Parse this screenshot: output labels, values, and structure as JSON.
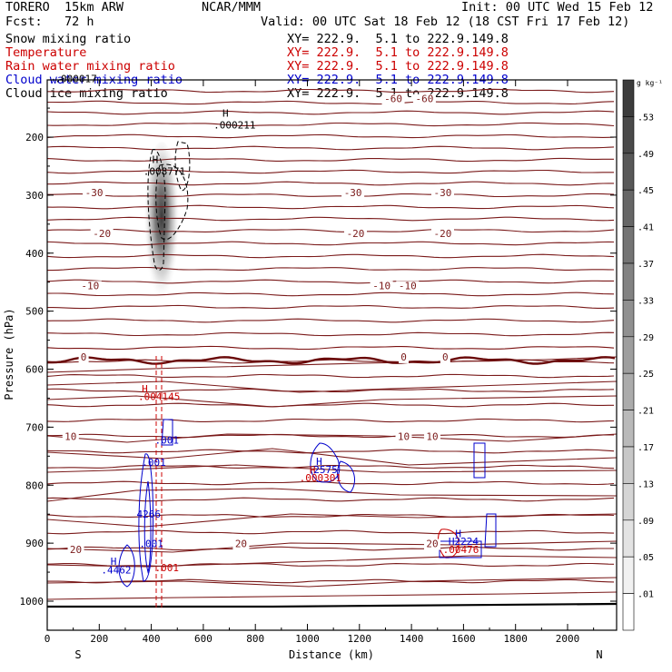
{
  "header": {
    "model": "TORERO  15km ARW",
    "center": "NCAR/MMM",
    "init": "Init: 00 UTC Wed 15 Feb 12",
    "fcst": "Fcst:   72 h",
    "valid": "Valid: 00 UTC Sat 18 Feb 12 (18 CST Fri 17 Feb 12)",
    "fields": [
      {
        "name": "Snow mixing ratio",
        "xy": "XY= 222.9.  5.1 to 222.9.149.8",
        "color": "#000000"
      },
      {
        "name": "Temperature",
        "xy": "XY= 222.9.  5.1 to 222.9.149.8",
        "color": "#cc0000"
      },
      {
        "name": "Rain water mixing ratio",
        "xy": "XY= 222.9.  5.1 to 222.9.149.8",
        "color": "#cc0000"
      },
      {
        "name": "Cloud water mixing ratio",
        "xy": "XY= 222.9.  5.1 to 222.9.149.8",
        "color": "#0000cc"
      },
      {
        "name": "Cloud ice mixing ratio",
        "xy": "XY= 222.9.  5.1 to 222.9.149.8",
        "color": "#000000"
      }
    ]
  },
  "chart_data": {
    "type": "cross-section",
    "xlabel": "Distance (km)",
    "ylabel": "Pressure (hPa)",
    "xlim": [
      0,
      2200
    ],
    "ylim": [
      1050,
      100
    ],
    "x_ticks": [
      "0",
      "200",
      "400",
      "600",
      "800",
      "1000",
      "1200",
      "1400",
      "1600",
      "1800",
      "2000"
    ],
    "y_ticks": [
      "200",
      "300",
      "400",
      "500",
      "600",
      "700",
      "800",
      "900",
      "1000"
    ],
    "left_end": "S",
    "right_end": "N",
    "colorbar": {
      "unit": "g kg⁻¹",
      "labels": [
        ".53",
        ".49",
        ".45",
        ".41",
        ".37",
        ".33",
        ".29",
        ".25",
        ".21",
        ".17",
        ".13",
        ".09",
        ".05",
        ".01"
      ]
    },
    "snow_max": {
      "label": "H",
      "value": ".008771",
      "x": 450,
      "p": 265
    },
    "cloud_ice_max": {
      "label": "H",
      "value": ".000211",
      "x": 720,
      "p": 185
    },
    "cloud_ice_corner": {
      "value": ".000017",
      "x": 110,
      "p": 105
    },
    "temperature_labels": [
      {
        "text": "-60",
        "x": 1330,
        "p": 140
      },
      {
        "text": "-60",
        "x": 1450,
        "p": 140
      },
      {
        "text": "-30",
        "x": 180,
        "p": 302
      },
      {
        "text": "-30",
        "x": 1175,
        "p": 302
      },
      {
        "text": "-30",
        "x": 1520,
        "p": 302
      },
      {
        "text": "-20",
        "x": 210,
        "p": 372
      },
      {
        "text": "-20",
        "x": 1185,
        "p": 372
      },
      {
        "text": "-20",
        "x": 1520,
        "p": 372
      },
      {
        "text": "-10",
        "x": 165,
        "p": 462
      },
      {
        "text": "-10",
        "x": 1285,
        "p": 462
      },
      {
        "text": "-10",
        "x": 1385,
        "p": 462
      },
      {
        "text": "0",
        "x": 140,
        "p": 585
      },
      {
        "text": "0",
        "x": 1370,
        "p": 585
      },
      {
        "text": "0",
        "x": 1530,
        "p": 585
      },
      {
        "text": "10",
        "x": 90,
        "p": 722
      },
      {
        "text": "10",
        "x": 1370,
        "p": 722
      },
      {
        "text": "10",
        "x": 1480,
        "p": 722
      },
      {
        "text": "20",
        "x": 110,
        "p": 917
      },
      {
        "text": "20",
        "x": 745,
        "p": 907
      },
      {
        "text": "20",
        "x": 1480,
        "p": 907
      }
    ],
    "rain_labels": [
      {
        "text": "H",
        "x": 375,
        "p": 640
      },
      {
        "text": ".004145",
        "x": 430,
        "p": 653
      },
      {
        "text": "H",
        "x": 1020,
        "p": 780
      },
      {
        "text": ".000301",
        "x": 1050,
        "p": 793
      },
      {
        "text": ".00476",
        "x": 1590,
        "p": 917
      },
      {
        "text": ".001",
        "x": 460,
        "p": 948
      }
    ],
    "cloud_water_labels": [
      {
        "text": ".001",
        "x": 460,
        "p": 728
      },
      {
        "text": ".001",
        "x": 410,
        "p": 767
      },
      {
        "text": "4266",
        "x": 390,
        "p": 856
      },
      {
        "text": "H",
        "x": 1045,
        "p": 765
      },
      {
        "text": "2575",
        "x": 1070,
        "p": 779
      },
      {
        "text": "H",
        "x": 1580,
        "p": 890
      },
      {
        "text": "H2224",
        "x": 1600,
        "p": 903
      },
      {
        "text": "H",
        "x": 255,
        "p": 937
      },
      {
        "text": ".4462",
        "x": 265,
        "p": 952
      },
      {
        "text": ".001",
        "x": 400,
        "p": 907
      }
    ]
  }
}
